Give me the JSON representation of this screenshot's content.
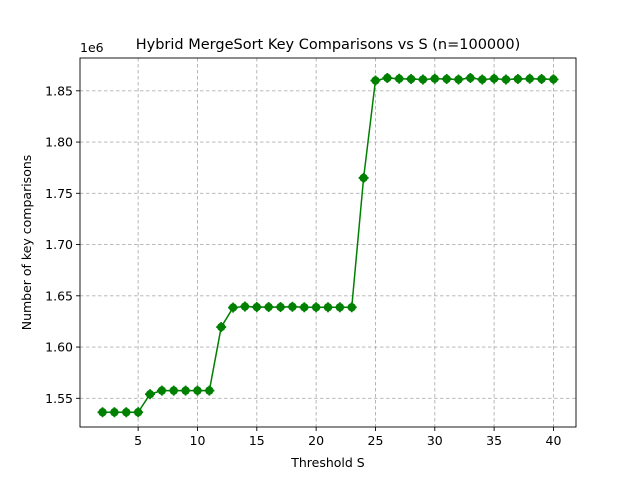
{
  "chart_data": {
    "type": "line",
    "title": "Hybrid MergeSort Key Comparisons vs S (n=100000)",
    "xlabel": "Threshold S",
    "ylabel": "Number of key comparisons",
    "offset_label": "1e6",
    "xlim": [
      0.1,
      41.9
    ],
    "ylim": [
      1.522,
      1.882
    ],
    "xticks": [
      5,
      10,
      15,
      20,
      25,
      30,
      35,
      40
    ],
    "yticks": [
      1.55,
      1.6,
      1.65,
      1.7,
      1.75,
      1.8,
      1.85
    ],
    "ytick_labels": [
      "1.55",
      "1.60",
      "1.65",
      "1.70",
      "1.75",
      "1.80",
      "1.85"
    ],
    "grid": true,
    "color": "#008000",
    "marker": "plus-filled-circle",
    "x": [
      2,
      3,
      4,
      5,
      6,
      7,
      8,
      9,
      10,
      11,
      12,
      13,
      14,
      15,
      16,
      17,
      18,
      19,
      20,
      21,
      22,
      23,
      24,
      25,
      26,
      27,
      28,
      29,
      30,
      31,
      32,
      33,
      34,
      35,
      36,
      37,
      38,
      39,
      40
    ],
    "values": [
      1.5364,
      1.5364,
      1.5364,
      1.5364,
      1.554,
      1.5575,
      1.5575,
      1.5575,
      1.5575,
      1.5575,
      1.6195,
      1.6385,
      1.6395,
      1.639,
      1.639,
      1.639,
      1.6393,
      1.6388,
      1.6388,
      1.6388,
      1.6388,
      1.6388,
      1.765,
      1.86,
      1.8625,
      1.8618,
      1.8615,
      1.861,
      1.8618,
      1.8615,
      1.861,
      1.8625,
      1.861,
      1.8618,
      1.861,
      1.8615,
      1.8618,
      1.8615,
      1.8612
    ]
  }
}
